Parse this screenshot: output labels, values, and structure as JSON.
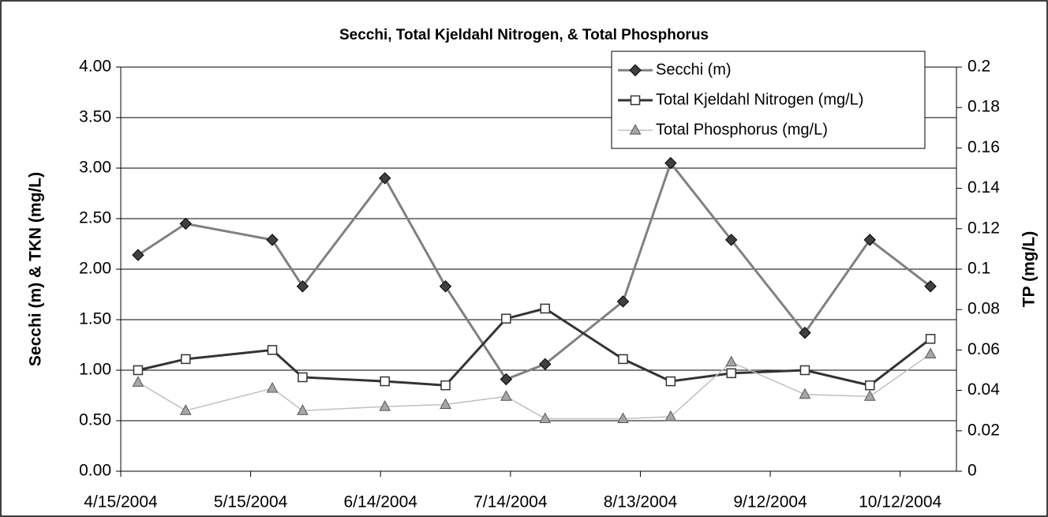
{
  "chart_data": {
    "type": "line",
    "title": "Secchi, Total Kjeldahl Nitrogen, & Total Phosphorus",
    "y_label": "Secchi (m) & TKN (mg/L)",
    "y2_label": "TP (mg/L)",
    "x": [
      "4/19/2004",
      "4/30/2004",
      "5/20/2004",
      "5/27/2004",
      "6/15/2004",
      "6/29/2004",
      "7/13/2004",
      "7/22/2004",
      "8/9/2004",
      "8/20/2004",
      "9/3/2004",
      "9/20/2004",
      "10/5/2004",
      "10/19/2004"
    ],
    "xlim": [
      "4/15/2004",
      "10/25/2004"
    ],
    "xticks": [
      "4/15/2004",
      "5/15/2004",
      "6/14/2004",
      "7/14/2004",
      "8/13/2004",
      "9/12/2004",
      "10/12/2004"
    ],
    "ylim": [
      0,
      4
    ],
    "yticks": [
      {
        "value": 0,
        "label": "0.00"
      },
      {
        "value": 0.5,
        "label": "0.50"
      },
      {
        "value": 1,
        "label": "1.00"
      },
      {
        "value": 1.5,
        "label": "1.50"
      },
      {
        "value": 2,
        "label": "2.00"
      },
      {
        "value": 2.5,
        "label": "2.50"
      },
      {
        "value": 3,
        "label": "3.00"
      },
      {
        "value": 3.5,
        "label": "3.50"
      },
      {
        "value": 4,
        "label": "4.00"
      }
    ],
    "y2lim": [
      0,
      0.2
    ],
    "y2ticks": [
      0,
      0.02,
      0.04,
      0.06,
      0.08,
      0.1,
      0.12,
      0.14,
      0.16,
      0.18,
      0.2
    ],
    "grid": true,
    "legend": "top-right",
    "series": [
      {
        "name": "Secchi (m)",
        "color": "#808080",
        "marker": "diamond",
        "marker_color": "#404040",
        "values": [
          2.14,
          2.45,
          2.29,
          1.83,
          2.9,
          1.83,
          0.91,
          1.06,
          1.68,
          3.05,
          2.29,
          1.37,
          2.29,
          1.83
        ]
      },
      {
        "name": "Total Kjeldahl Nitrogen (mg/L)",
        "color": "#333333",
        "marker": "square",
        "marker_color": "#ffffff",
        "values": [
          1.0,
          1.11,
          1.2,
          0.93,
          0.89,
          0.85,
          1.51,
          1.61,
          1.11,
          0.89,
          0.97,
          1.0,
          0.85,
          1.31
        ]
      },
      {
        "name": "Total Phosphorus (mg/L)",
        "color": "#c0c0c0",
        "marker": "triangle",
        "marker_color": "#a6a6a6",
        "axis": "y2",
        "values": [
          0.044,
          0.03,
          0.041,
          0.03,
          0.032,
          0.033,
          0.037,
          0.026,
          0.026,
          0.027,
          0.054,
          0.038,
          0.037,
          0.058
        ]
      }
    ]
  }
}
